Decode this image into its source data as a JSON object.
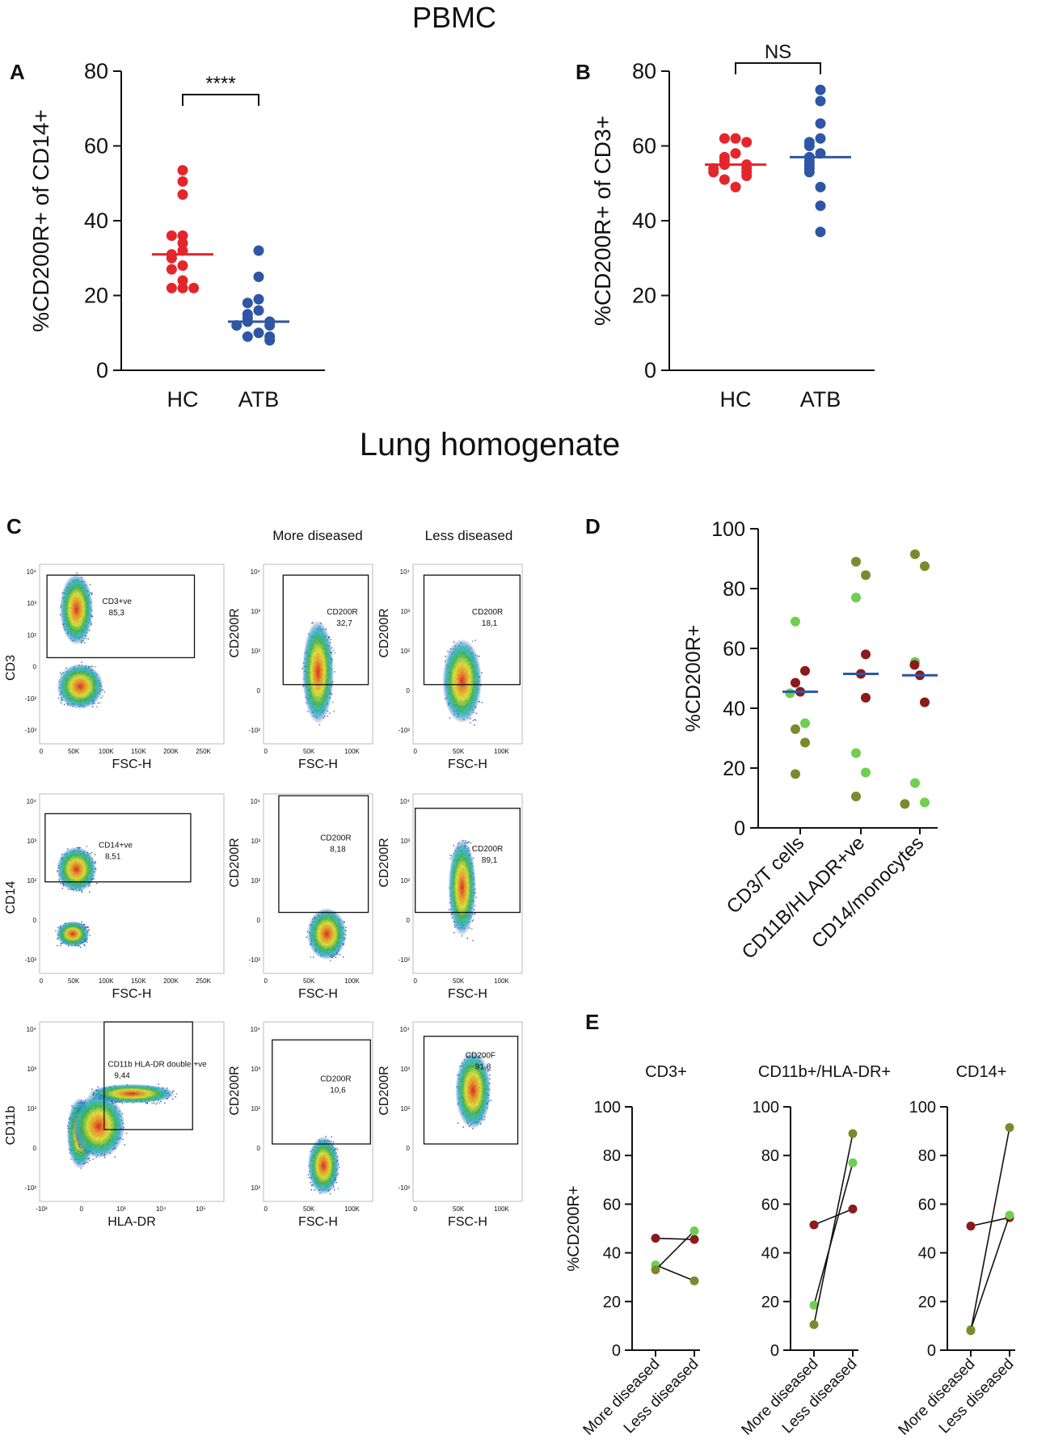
{
  "titles": {
    "pbmc": "PBMC",
    "lung": "Lung homogenate"
  },
  "panel_labels": {
    "a": "A",
    "b": "B",
    "c": "C",
    "d": "D",
    "e": "E"
  },
  "colors": {
    "red": "#e3262c",
    "blue": "#2f56a4",
    "darkred": "#8b1a1a",
    "green": "#6fcf50",
    "olive": "#7b8a2e",
    "median": "#2f56a4"
  },
  "flow_panel": {
    "column_headers": [
      "More diseased",
      "Less diseased"
    ],
    "rows": [
      {
        "gate_plot": {
          "y_axis": "CD3",
          "x_axis": "FSC-H",
          "gate_name": "CD3+ve",
          "gate_value": "85,3",
          "x_ticks": [
            "0",
            "50K",
            "100K",
            "150K",
            "200K",
            "250K"
          ],
          "y_ticks": [
            "10⁴",
            "10³",
            "10²",
            "0",
            "-10²",
            "-10³"
          ]
        },
        "more": {
          "y_axis": "CD200R",
          "x_axis": "FSC-H",
          "gate_name": "CD200R",
          "gate_value": "32,7",
          "x_ticks": [
            "0",
            "50K",
            "100K"
          ],
          "y_ticks": [
            "10⁴",
            "10³",
            "10²",
            "0",
            "-10²"
          ]
        },
        "less": {
          "y_axis": "CD200R",
          "x_axis": "FSC-H",
          "gate_name": "CD200R",
          "gate_value": "18,1",
          "x_ticks": [
            "0",
            "50K",
            "100K"
          ],
          "y_ticks": [
            "10⁴",
            "10³",
            "10²",
            "0",
            "-10²"
          ]
        }
      },
      {
        "gate_plot": {
          "y_axis": "CD14",
          "x_axis": "FSC-H",
          "gate_name": "CD14+ve",
          "gate_value": "8,51",
          "x_ticks": [
            "0",
            "50K",
            "100K",
            "150K",
            "200K",
            "250K"
          ],
          "y_ticks": [
            "10⁴",
            "10³",
            "10²",
            "0",
            "-10²"
          ]
        },
        "more": {
          "y_axis": "CD200R",
          "x_axis": "FSC-H",
          "gate_name": "CD200R",
          "gate_value": "8,18",
          "x_ticks": [
            "0",
            "50K",
            "100K"
          ],
          "y_ticks": [
            "10⁴",
            "10³",
            "10²",
            "0",
            "-10²"
          ]
        },
        "less": {
          "y_axis": "CD200R",
          "x_axis": "FSC-H",
          "gate_name": "CD200R",
          "gate_value": "89,1",
          "x_ticks": [
            "0",
            "50K",
            "100K"
          ],
          "y_ticks": [
            "10⁴",
            "10³",
            "10²",
            "0",
            "-10²"
          ]
        }
      },
      {
        "gate_plot": {
          "y_axis": "CD11b",
          "x_axis": "HLA-DR",
          "gate_name": "CD11b HLA-DR double +ve",
          "gate_value": "9,44",
          "x_ticks": [
            "-10³",
            "0",
            "10³",
            "10⁴",
            "10⁵"
          ],
          "y_ticks": [
            "10⁴",
            "10³",
            "10²",
            "0",
            "-10²"
          ]
        },
        "more": {
          "y_axis": "CD200R",
          "x_axis": "FSC-H",
          "gate_name": "CD200R",
          "gate_value": "10,6",
          "x_ticks": [
            "0",
            "50K",
            "100K"
          ],
          "y_ticks": [
            "10⁴",
            "10³",
            "10²",
            "0",
            "10²"
          ]
        },
        "less": {
          "y_axis": "CD200R",
          "x_axis": "FSC-H",
          "gate_name": "CD200F",
          "gate_value": "91,8",
          "x_ticks": [
            "0",
            "50K",
            "100K"
          ],
          "y_ticks": [
            "10⁴",
            "10³",
            "10²",
            "0",
            "-10²"
          ]
        }
      }
    ]
  },
  "chart_data": [
    {
      "id": "A",
      "type": "scatter",
      "ylabel": "%CD200R+ of CD14+",
      "ylim": [
        0,
        80
      ],
      "yticks": [
        0,
        20,
        40,
        60,
        80
      ],
      "categories": [
        "HC",
        "ATB"
      ],
      "series": [
        {
          "name": "HC",
          "values": [
            53.5,
            50.5,
            47,
            36,
            36,
            34,
            32,
            31,
            30,
            28,
            27,
            24,
            22,
            22,
            22
          ],
          "median": 31,
          "color": "#e3262c"
        },
        {
          "name": "ATB",
          "values": [
            32,
            25,
            19,
            18,
            16,
            15,
            14,
            13,
            13,
            12,
            12,
            10,
            9,
            9,
            8
          ],
          "median": 13,
          "color": "#2f56a4"
        }
      ],
      "significance": "****"
    },
    {
      "id": "B",
      "type": "scatter",
      "ylabel": "%CD200R+ of CD3+",
      "ylim": [
        0,
        80
      ],
      "yticks": [
        0,
        20,
        40,
        60,
        80
      ],
      "categories": [
        "HC",
        "ATB"
      ],
      "series": [
        {
          "name": "HC",
          "values": [
            62,
            62,
            61,
            58,
            57,
            56,
            55,
            55,
            54,
            54,
            53,
            53,
            52,
            51,
            49
          ],
          "median": 55,
          "color": "#e3262c"
        },
        {
          "name": "ATB",
          "values": [
            75,
            72,
            66,
            62,
            61,
            60,
            58,
            57,
            56,
            55,
            54,
            53,
            49,
            44,
            37
          ],
          "median": 57,
          "color": "#2f56a4"
        }
      ],
      "significance": "NS"
    },
    {
      "id": "D",
      "type": "scatter",
      "ylabel": "%CD200R+",
      "ylim": [
        0,
        100
      ],
      "yticks": [
        0,
        20,
        40,
        60,
        80,
        100
      ],
      "categories": [
        "CD3/T cells",
        "CD11B/HLADR+ve",
        "CD14/monocytes"
      ],
      "groups": [
        {
          "name": "CD3/T cells",
          "median": 45.5,
          "points": [
            {
              "v": 69,
              "c": "green"
            },
            {
              "v": 52.5,
              "c": "darkred"
            },
            {
              "v": 48.5,
              "c": "darkred"
            },
            {
              "v": 45.5,
              "c": "darkred"
            },
            {
              "v": 45,
              "c": "green"
            },
            {
              "v": 35,
              "c": "green"
            },
            {
              "v": 33,
              "c": "olive"
            },
            {
              "v": 28.5,
              "c": "olive"
            },
            {
              "v": 18,
              "c": "olive"
            }
          ]
        },
        {
          "name": "CD11B/HLADR+ve",
          "median": 51.5,
          "points": [
            {
              "v": 89,
              "c": "olive"
            },
            {
              "v": 84.5,
              "c": "olive"
            },
            {
              "v": 77,
              "c": "green"
            },
            {
              "v": 58,
              "c": "darkred"
            },
            {
              "v": 51.5,
              "c": "darkred"
            },
            {
              "v": 43.5,
              "c": "darkred"
            },
            {
              "v": 25,
              "c": "green"
            },
            {
              "v": 18.5,
              "c": "green"
            },
            {
              "v": 10.5,
              "c": "olive"
            }
          ]
        },
        {
          "name": "CD14/monocytes",
          "median": 51,
          "points": [
            {
              "v": 91.5,
              "c": "olive"
            },
            {
              "v": 87.5,
              "c": "olive"
            },
            {
              "v": 55.5,
              "c": "green"
            },
            {
              "v": 54.5,
              "c": "darkred"
            },
            {
              "v": 51,
              "c": "darkred"
            },
            {
              "v": 42,
              "c": "darkred"
            },
            {
              "v": 15,
              "c": "green"
            },
            {
              "v": 8.5,
              "c": "green"
            },
            {
              "v": 8,
              "c": "olive"
            }
          ]
        }
      ]
    },
    {
      "id": "E",
      "type": "line",
      "ylabel": "%CD200R+",
      "ylim": [
        0,
        100
      ],
      "yticks": [
        0,
        20,
        40,
        60,
        80,
        100
      ],
      "categories": [
        "More diseased",
        "Less diseased"
      ],
      "subplots": [
        {
          "title": "CD3+",
          "pairs": [
            {
              "more": 46,
              "less": 45.5,
              "cm": "darkred",
              "cl": "darkred"
            },
            {
              "more": 35,
              "less": 28.5,
              "cm": "green",
              "cl": "olive"
            },
            {
              "more": 33,
              "less": 49,
              "cm": "olive",
              "cl": "green"
            }
          ]
        },
        {
          "title": "CD11b+/HLA-DR+",
          "pairs": [
            {
              "more": 51.5,
              "less": 58,
              "cm": "darkred",
              "cl": "darkred"
            },
            {
              "more": 18.5,
              "less": 77,
              "cm": "green",
              "cl": "green"
            },
            {
              "more": 10.5,
              "less": 89,
              "cm": "olive",
              "cl": "olive"
            }
          ]
        },
        {
          "title": "CD14+",
          "pairs": [
            {
              "more": 51,
              "less": 54.5,
              "cm": "darkred",
              "cl": "darkred"
            },
            {
              "more": 8.5,
              "less": 55.5,
              "cm": "green",
              "cl": "green"
            },
            {
              "more": 8,
              "less": 91.5,
              "cm": "olive",
              "cl": "olive"
            }
          ]
        }
      ]
    }
  ]
}
